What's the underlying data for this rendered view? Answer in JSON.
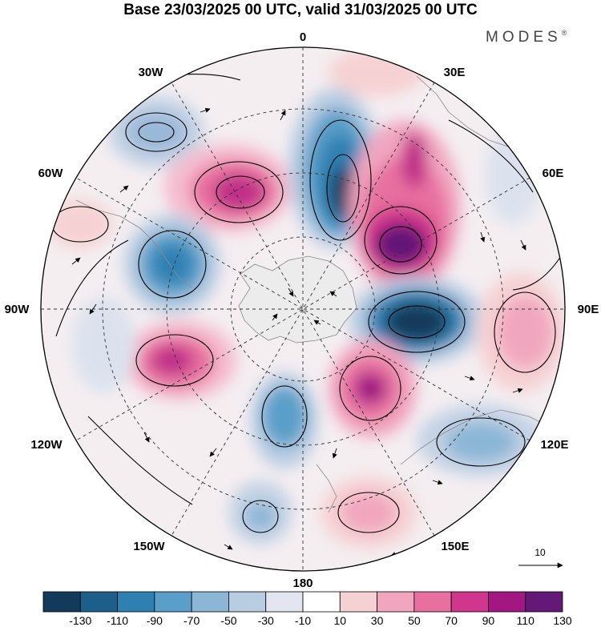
{
  "title": "Base 23/03/2025 00 UTC, valid 31/03/2025 00 UTC",
  "brand": "MODES",
  "brand_mark": "®",
  "longitude_labels": {
    "lon_0": "0",
    "lon_30e": "30E",
    "lon_60e": "60E",
    "lon_90e": "90E",
    "lon_120e": "120E",
    "lon_150e": "150E",
    "lon_180": "180",
    "lon_150w": "150W",
    "lon_120w": "120W",
    "lon_90w": "90W",
    "lon_60w": "60W",
    "lon_30w": "30W"
  },
  "reference_vector": {
    "label": "10"
  },
  "colorbar": {
    "ticks": [
      "-130",
      "-110",
      "-90",
      "-70",
      "-50",
      "-30",
      "-10",
      "10",
      "30",
      "50",
      "70",
      "90",
      "110",
      "130"
    ],
    "colors": [
      "#123a5a",
      "#1c5f8b",
      "#2f80b2",
      "#5a9fc9",
      "#8cb6d6",
      "#b9cde2",
      "#e3e6f0",
      "#ffffff",
      "#f6d1d3",
      "#f1a6bf",
      "#e7709f",
      "#d0368b",
      "#a31783",
      "#641878"
    ]
  },
  "map": {
    "projection": "polar-stereographic-south",
    "field": "anomaly (shaded) with streamlines",
    "anomalies": [
      {
        "sign": "negative",
        "intensity": 3,
        "region": "near 30W-60W"
      },
      {
        "sign": "positive",
        "intensity": 4,
        "region": "near 45W"
      },
      {
        "sign": "negative",
        "intensity": 5,
        "region": "near 10E"
      },
      {
        "sign": "positive",
        "intensity": 6,
        "region": "near 40E"
      },
      {
        "sign": "negative",
        "intensity": 4,
        "region": "near 70W"
      },
      {
        "sign": "negative",
        "intensity": 6,
        "region": "near 80E"
      },
      {
        "sign": "positive",
        "intensity": 3,
        "region": "near 90E"
      },
      {
        "sign": "positive",
        "intensity": 5,
        "region": "near 115W"
      },
      {
        "sign": "negative",
        "intensity": 3,
        "region": "near 160W"
      },
      {
        "sign": "positive",
        "intensity": 4,
        "region": "near 140E"
      },
      {
        "sign": "negative",
        "intensity": 2,
        "region": "near 125E"
      },
      {
        "sign": "positive",
        "intensity": 2,
        "region": "near 160E"
      },
      {
        "sign": "negative",
        "intensity": 2,
        "region": "near 165W"
      }
    ]
  }
}
